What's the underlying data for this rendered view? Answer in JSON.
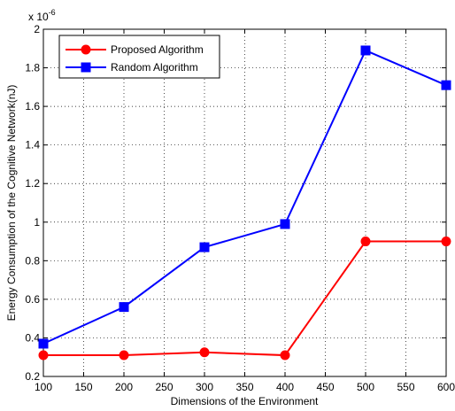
{
  "chart_data": {
    "type": "line",
    "title": "",
    "xlabel": "Dimensions of the Environment",
    "ylabel": "Energy Consumption of the Cognitive Network(nJ)",
    "y_exponent_label": "x 10",
    "y_exponent_power": "-6",
    "xlim": [
      100,
      600
    ],
    "ylim": [
      0.2,
      2
    ],
    "x_ticks": [
      100,
      150,
      200,
      250,
      300,
      350,
      400,
      450,
      500,
      550,
      600
    ],
    "y_ticks": [
      0.2,
      0.4,
      0.6,
      0.8,
      1,
      1.2,
      1.4,
      1.6,
      1.8,
      2
    ],
    "grid": true,
    "legend_position": "top-left",
    "series": [
      {
        "name": "Proposed Algorithm",
        "color": "#ff0000",
        "marker": "circle",
        "x": [
          100,
          200,
          300,
          400,
          500,
          600
        ],
        "y": [
          0.31,
          0.31,
          0.325,
          0.31,
          0.9,
          0.9
        ]
      },
      {
        "name": "Random Algorithm",
        "color": "#0000ff",
        "marker": "square",
        "x": [
          100,
          200,
          300,
          400,
          500,
          600
        ],
        "y": [
          0.37,
          0.56,
          0.87,
          0.99,
          1.89,
          1.71
        ]
      }
    ]
  }
}
